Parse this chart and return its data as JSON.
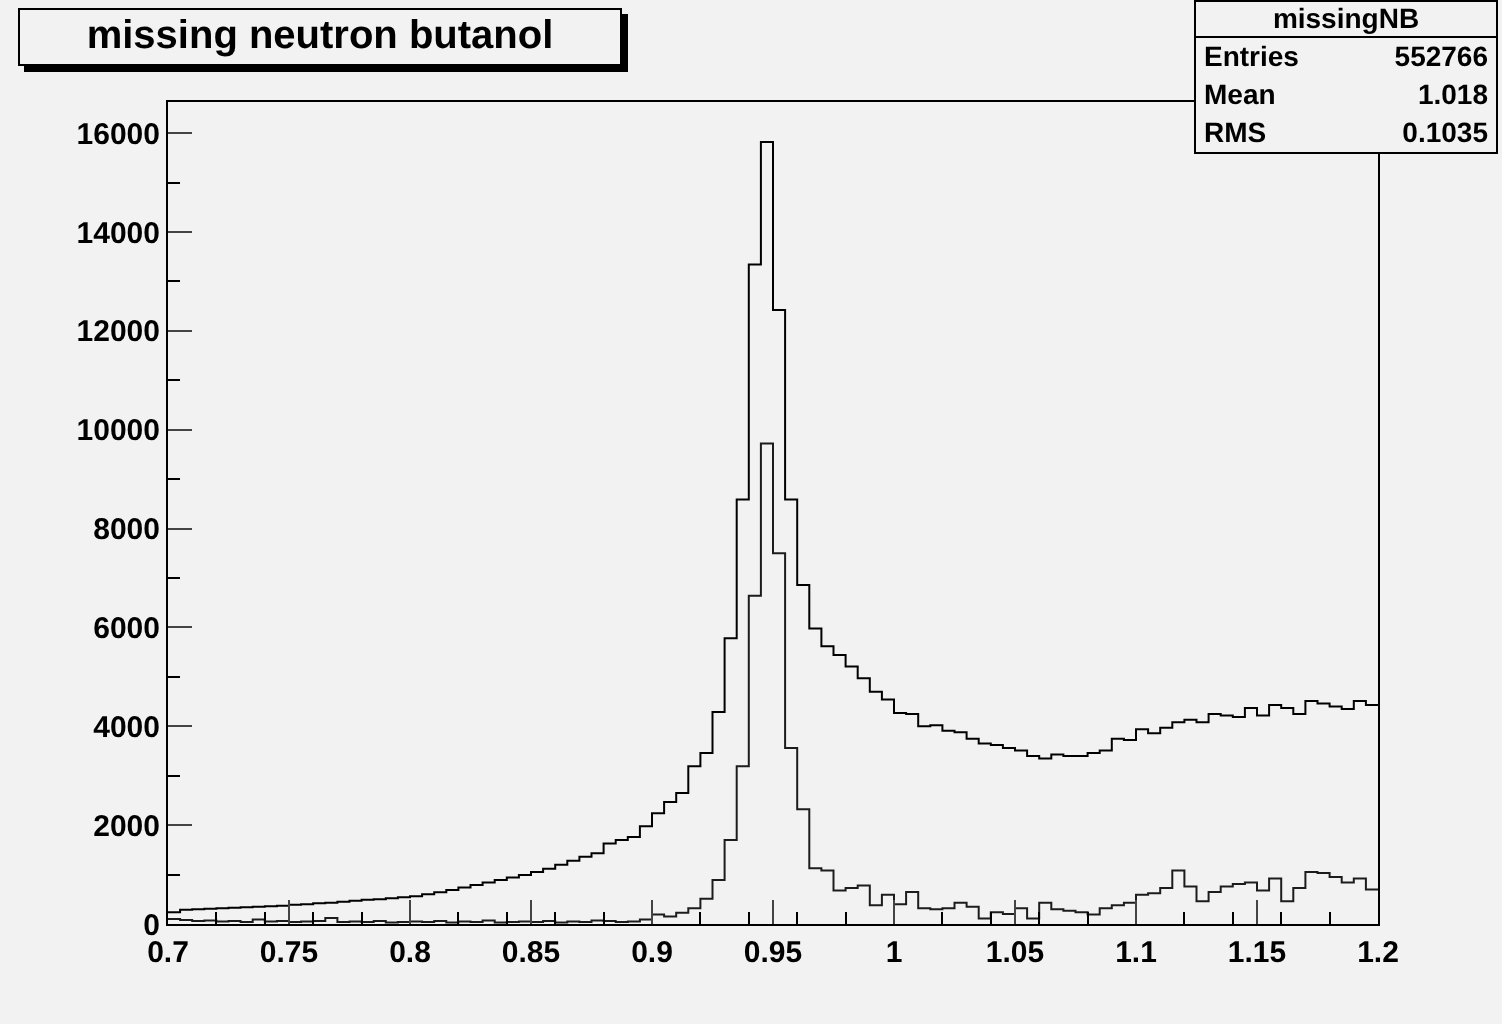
{
  "chart_data": {
    "type": "histogram",
    "title": "missing neutron butanol",
    "annotations": [
      "missingNB",
      "Entries",
      "552766",
      "Mean",
      "1.018",
      "RMS",
      "0.1035"
    ],
    "bins": [
      0.7,
      0.705,
      0.71,
      0.715,
      0.72,
      0.725,
      0.73,
      0.735,
      0.74,
      0.745,
      0.75,
      0.755,
      0.76,
      0.765,
      0.77,
      0.775,
      0.78,
      0.785,
      0.79,
      0.795,
      0.8,
      0.805,
      0.81,
      0.815,
      0.82,
      0.825,
      0.83,
      0.835,
      0.84,
      0.845,
      0.85,
      0.855,
      0.86,
      0.865,
      0.87,
      0.875,
      0.88,
      0.885,
      0.89,
      0.895,
      0.9,
      0.905,
      0.91,
      0.915,
      0.92,
      0.925,
      0.93,
      0.935,
      0.94,
      0.945,
      0.95,
      0.955,
      0.96,
      0.965,
      0.97,
      0.975,
      0.98,
      0.985,
      0.99,
      0.995,
      1.0,
      1.005,
      1.01,
      1.015,
      1.02,
      1.025,
      1.03,
      1.035,
      1.04,
      1.045,
      1.05,
      1.055,
      1.06,
      1.065,
      1.07,
      1.075,
      1.08,
      1.085,
      1.09,
      1.095,
      1.1,
      1.105,
      1.11,
      1.115,
      1.12,
      1.125,
      1.13,
      1.135,
      1.14,
      1.145,
      1.15,
      1.155,
      1.16,
      1.165,
      1.17,
      1.175,
      1.18,
      1.185,
      1.19,
      1.195,
      1.2
    ],
    "series": [
      {
        "color": "#000000",
        "values": [
          240,
          290,
          300,
          310,
          320,
          330,
          340,
          350,
          360,
          370,
          390,
          400,
          420,
          430,
          450,
          470,
          490,
          500,
          520,
          540,
          560,
          600,
          640,
          690,
          740,
          790,
          840,
          890,
          940,
          990,
          1050,
          1120,
          1200,
          1280,
          1360,
          1430,
          1630,
          1700,
          1760,
          1980,
          2240,
          2470,
          2650,
          3190,
          3460,
          4290,
          5780,
          8590,
          13340,
          15820,
          12420,
          8590,
          6860,
          5980,
          5620,
          5440,
          5210,
          4970,
          4700,
          4540,
          4270,
          4250,
          4000,
          4020,
          3910,
          3880,
          3750,
          3650,
          3620,
          3560,
          3510,
          3400,
          3350,
          3430,
          3400,
          3400,
          3460,
          3510,
          3750,
          3720,
          3940,
          3860,
          3970,
          4080,
          4130,
          4080,
          4250,
          4220,
          4190,
          4370,
          4220,
          4430,
          4370,
          4250,
          4510,
          4460,
          4400,
          4350,
          4510,
          4430
        ]
      },
      {
        "color": "#1c1c1c",
        "values": [
          100,
          80,
          60,
          70,
          50,
          60,
          40,
          90,
          50,
          60,
          40,
          50,
          60,
          120,
          40,
          50,
          40,
          60,
          30,
          40,
          50,
          40,
          60,
          30,
          50,
          40,
          70,
          30,
          40,
          50,
          40,
          60,
          30,
          50,
          40,
          70,
          60,
          40,
          50,
          90,
          190,
          150,
          230,
          320,
          510,
          890,
          1700,
          3190,
          6640,
          9720,
          7500,
          3560,
          2320,
          1130,
          1080,
          680,
          730,
          780,
          380,
          590,
          400,
          650,
          320,
          300,
          320,
          430,
          350,
          110,
          240,
          200,
          320,
          110,
          430,
          300,
          270,
          240,
          190,
          320,
          380,
          430,
          590,
          620,
          730,
          1080,
          760,
          460,
          650,
          760,
          810,
          840,
          680,
          920,
          460,
          730,
          1050,
          1030,
          950,
          840,
          920,
          700
        ]
      }
    ],
    "xlim": [
      0.7,
      1.2
    ],
    "ylim": [
      0,
      16630
    ],
    "xticks": [
      0.7,
      0.75,
      0.8,
      0.85,
      0.9,
      0.95,
      1,
      1.05,
      1.1,
      1.15,
      1.2
    ],
    "yticks": [
      0,
      2000,
      4000,
      6000,
      8000,
      10000,
      12000,
      14000,
      16000
    ],
    "grid": false
  }
}
